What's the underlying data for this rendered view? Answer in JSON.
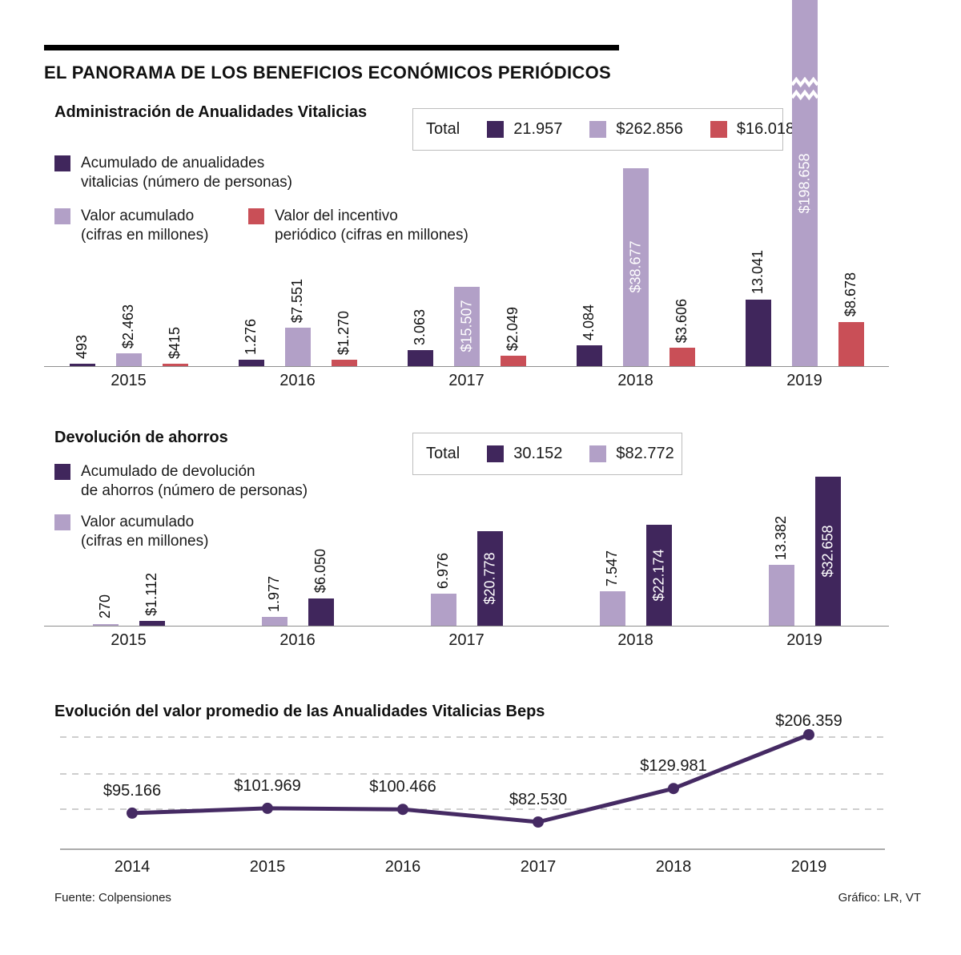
{
  "header": {
    "title": "EL PANORAMA DE LOS BENEFICIOS ECONÓMICOS PERIÓDICOS"
  },
  "colors": {
    "dark_purple": "#40265c",
    "light_purple": "#b2a0c7",
    "red": "#c94f57",
    "line": "#452a63",
    "axis": "#8f8f8f",
    "grid": "#b0b0b0"
  },
  "chart_data": [
    {
      "type": "bar",
      "title": "Administración de Anualidades Vitalicias",
      "total_label": "Total",
      "categories": [
        "2015",
        "2016",
        "2017",
        "2018",
        "2019"
      ],
      "series": [
        {
          "key": "persons",
          "name": "Acumulado de anualidades vitalicias (número de personas)",
          "legend_label": "Acumulado de anualidades\nvitalicias (número de personas)",
          "color": "#40265c",
          "legend_color": "#40265c",
          "values": [
            493,
            1276,
            3063,
            4084,
            13041
          ],
          "labels": [
            "493",
            "1.276",
            "3.063",
            "4.084",
            "13.041"
          ],
          "total": "21.957"
        },
        {
          "key": "valor",
          "name": "Valor acumulado (cifras en millones)",
          "legend_label": "Valor acumulado\n(cifras en millones)",
          "color": "#b2a0c7",
          "legend_color": "#b2a0c7",
          "values": [
            2463,
            7551,
            15507,
            38677,
            198658
          ],
          "labels": [
            "$2.463",
            "$7.551",
            "$15.507",
            "$38.677",
            "$198.658"
          ],
          "total": "$262.856"
        },
        {
          "key": "incentivo",
          "name": "Valor del incentivo periódico (cifras en millones)",
          "legend_label": "Valor del incentivo\nperiódico (cifras en millones)",
          "color": "#c94f57",
          "legend_color": "#c94f57",
          "values": [
            415,
            1270,
            2049,
            3606,
            8678
          ],
          "labels": [
            "$415",
            "$1.270",
            "$2.049",
            "$3.606",
            "$8.678"
          ],
          "total": "$16.018"
        }
      ],
      "y_axis_break": {
        "series": "valor",
        "category": "2019"
      }
    },
    {
      "type": "bar",
      "title": "Devolución de ahorros",
      "total_label": "Total",
      "categories": [
        "2015",
        "2016",
        "2017",
        "2018",
        "2019"
      ],
      "series": [
        {
          "key": "persons",
          "name": "Acumulado de devolución de ahorros (número de personas)",
          "legend_label": "Acumulado de devolución\nde ahorros (número de personas)",
          "color": "#b2a0c7",
          "legend_color": "#40265c",
          "values": [
            270,
            1977,
            6976,
            7547,
            13382
          ],
          "labels": [
            "270",
            "1.977",
            "6.976",
            "7.547",
            "13.382"
          ],
          "total": "30.152"
        },
        {
          "key": "valor",
          "name": "Valor acumulado (cifras en millones)",
          "legend_label": "Valor acumulado\n(cifras en millones)",
          "color": "#40265c",
          "legend_color": "#b2a0c7",
          "values": [
            1112,
            6050,
            20778,
            22174,
            32658
          ],
          "labels": [
            "$1.112",
            "$6.050",
            "$20.778",
            "$22.174",
            "$32.658"
          ],
          "total": "$82.772"
        }
      ]
    },
    {
      "type": "line",
      "title": "Evolución del valor promedio de las Anualidades Vitalicias Beps",
      "x": [
        "2014",
        "2015",
        "2016",
        "2017",
        "2018",
        "2019"
      ],
      "values": [
        95166,
        101969,
        100466,
        82530,
        129981,
        206359
      ],
      "labels": [
        "$95.166",
        "$101.969",
        "$100.466",
        "$82.530",
        "$129.981",
        "$206.359"
      ],
      "color": "#452a63",
      "grid": "dashed-horizontal",
      "ylim": [
        82530,
        206359
      ]
    }
  ],
  "footer": {
    "source": "Fuente: Colpensiones",
    "credit": "Gráfico: LR, VT"
  }
}
